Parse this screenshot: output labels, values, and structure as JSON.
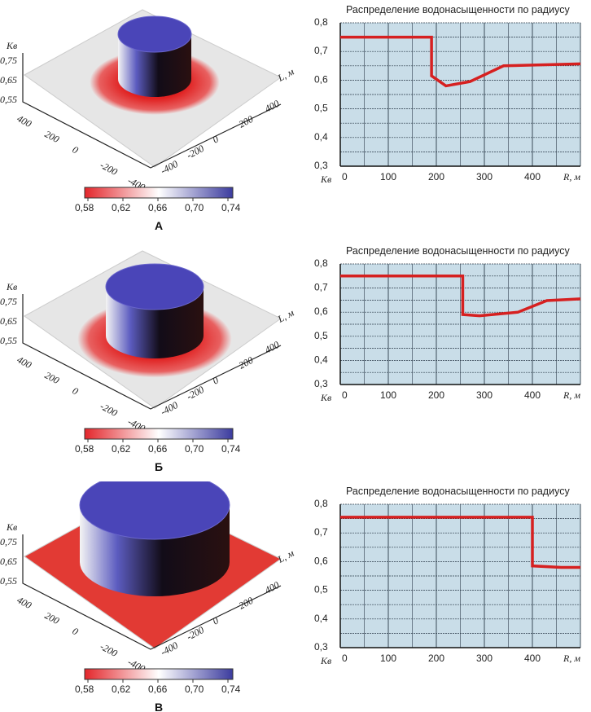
{
  "panels": [
    {
      "letter": "А",
      "surface_label": "Kв",
      "z_ticks": [
        "0,75",
        "0,65",
        "0,55"
      ],
      "left_ticks": [
        "400",
        "200",
        "0",
        "-200",
        "-400"
      ],
      "right_ticks": [
        "-400",
        "-200",
        "0",
        "200",
        "400"
      ],
      "right_axis_label": "L, м",
      "colorbar_ticks": [
        "0,58",
        "0,62",
        "0,66",
        "0,70",
        "0,74"
      ]
    },
    {
      "letter": "Б",
      "surface_label": "Kв",
      "z_ticks": [
        "0,75",
        "0,65",
        "0,55"
      ],
      "left_ticks": [
        "400",
        "200",
        "0",
        "-200",
        "-400"
      ],
      "right_ticks": [
        "-400",
        "-200",
        "0",
        "200",
        "400"
      ],
      "right_axis_label": "L, м",
      "colorbar_ticks": [
        "0,58",
        "0,62",
        "0,66",
        "0,70",
        "0,74"
      ]
    },
    {
      "letter": "В",
      "surface_label": "Kв",
      "z_ticks": [
        "0,75",
        "0,65",
        "0,55"
      ],
      "left_ticks": [
        "400",
        "200",
        "0",
        "-200",
        "-400"
      ],
      "right_ticks": [
        "-400",
        "-200",
        "0",
        "200",
        "400"
      ],
      "right_axis_label": "L, м",
      "colorbar_ticks": [
        "0,58",
        "0,62",
        "0,66",
        "0,70",
        "0,74"
      ]
    }
  ],
  "colorbar": {
    "colors": [
      "#e3262b",
      "#ffffff",
      "#3b3b9e"
    ]
  },
  "chart_data": [
    {
      "type": "line",
      "title": "Распределение водонасыщенности по радиусу",
      "xlabel": "R, м",
      "ylabel": "Kв",
      "xlim": [
        0,
        500
      ],
      "ylim": [
        0.3,
        0.8
      ],
      "grid": true,
      "x_ticks": [
        "0",
        "100",
        "200",
        "300",
        "400"
      ],
      "y_ticks": [
        "0,8",
        "0,7",
        "0,6",
        "0,5",
        "0,4",
        "0,3"
      ],
      "line_color": "#d62020",
      "plot_bg": "#c9dde8",
      "x": [
        0,
        190,
        190,
        220,
        270,
        340,
        500
      ],
      "y": [
        0.75,
        0.75,
        0.615,
        0.58,
        0.595,
        0.65,
        0.657
      ]
    },
    {
      "type": "line",
      "title": "Распределение водонасыщенности по радиусу",
      "xlabel": "R, м",
      "ylabel": "Kв",
      "xlim": [
        0,
        500
      ],
      "ylim": [
        0.3,
        0.8
      ],
      "grid": true,
      "x_ticks": [
        "0",
        "100",
        "200",
        "300",
        "400"
      ],
      "y_ticks": [
        "0,8",
        "0,7",
        "0,6",
        "0,5",
        "0,4",
        "0,3"
      ],
      "line_color": "#d62020",
      "plot_bg": "#c9dde8",
      "x": [
        0,
        255,
        255,
        290,
        370,
        430,
        500
      ],
      "y": [
        0.75,
        0.75,
        0.59,
        0.585,
        0.6,
        0.648,
        0.655
      ]
    },
    {
      "type": "line",
      "title": "Распределение водонасыщенности по радиусу",
      "xlabel": "R, м",
      "ylabel": "Kв",
      "xlim": [
        0,
        500
      ],
      "ylim": [
        0.3,
        0.8
      ],
      "grid": true,
      "x_ticks": [
        "0",
        "100",
        "200",
        "300",
        "400"
      ],
      "y_ticks": [
        "0,8",
        "0,7",
        "0,6",
        "0,5",
        "0,4",
        "0,3"
      ],
      "line_color": "#d62020",
      "plot_bg": "#c9dde8",
      "x": [
        0,
        400,
        400,
        460,
        500
      ],
      "y": [
        0.755,
        0.755,
        0.585,
        0.58,
        0.58
      ]
    }
  ]
}
